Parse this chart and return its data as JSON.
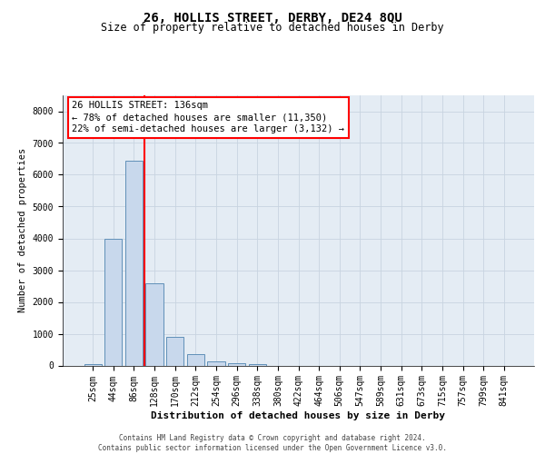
{
  "title": "26, HOLLIS STREET, DERBY, DE24 8QU",
  "subtitle": "Size of property relative to detached houses in Derby",
  "xlabel": "Distribution of detached houses by size in Derby",
  "ylabel": "Number of detached properties",
  "categories": [
    "25sqm",
    "44sqm",
    "86sqm",
    "128sqm",
    "170sqm",
    "212sqm",
    "254sqm",
    "296sqm",
    "338sqm",
    "380sqm",
    "422sqm",
    "464sqm",
    "506sqm",
    "547sqm",
    "589sqm",
    "631sqm",
    "673sqm",
    "715sqm",
    "757sqm",
    "799sqm",
    "841sqm"
  ],
  "values": [
    30,
    4000,
    6450,
    2600,
    900,
    350,
    130,
    80,
    50,
    0,
    0,
    0,
    0,
    0,
    0,
    0,
    0,
    0,
    0,
    0,
    0
  ],
  "bar_color": "#c8d8ec",
  "bar_edge_color": "#6090b8",
  "grid_color": "#c8d4e0",
  "background_color": "#e4ecf4",
  "annotation_line1": "26 HOLLIS STREET: 136sqm",
  "annotation_line2": "← 78% of detached houses are smaller (11,350)",
  "annotation_line3": "22% of semi-detached houses are larger (3,132) →",
  "annotation_box_color": "white",
  "annotation_box_edge_color": "red",
  "vline_color": "red",
  "vline_x": 2.5,
  "ylim": [
    0,
    8500
  ],
  "yticks": [
    0,
    1000,
    2000,
    3000,
    4000,
    5000,
    6000,
    7000,
    8000
  ],
  "footer_line1": "Contains HM Land Registry data © Crown copyright and database right 2024.",
  "footer_line2": "Contains public sector information licensed under the Open Government Licence v3.0.",
  "title_fontsize": 10,
  "subtitle_fontsize": 8.5,
  "ylabel_fontsize": 7.5,
  "xlabel_fontsize": 8,
  "tick_fontsize": 7,
  "annotation_fontsize": 7.5,
  "footer_fontsize": 5.5
}
